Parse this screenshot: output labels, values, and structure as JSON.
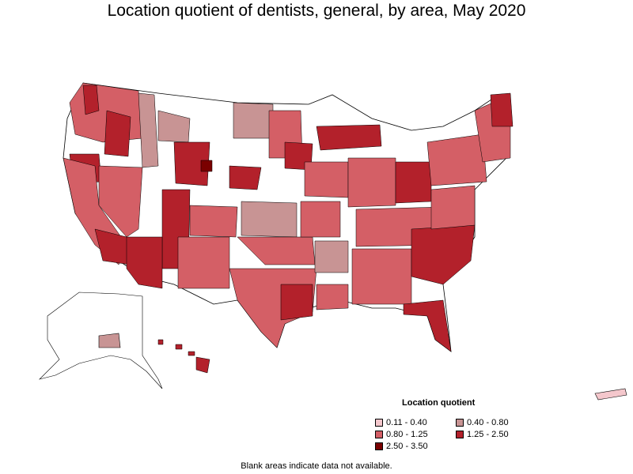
{
  "title": "Location quotient of dentists, general, by area, May 2020",
  "legend": {
    "title": "Location quotient",
    "items": [
      {
        "label": "0.11 - 0.40",
        "color": "#f4c7cc"
      },
      {
        "label": "0.40 - 0.80",
        "color": "#c89494"
      },
      {
        "label": "0.80 - 1.25",
        "color": "#d45f66"
      },
      {
        "label": "1.25 - 2.50",
        "color": "#b3212b"
      },
      {
        "label": "2.50 - 3.50",
        "color": "#7a0000"
      }
    ]
  },
  "footnote": "Blank areas indicate data not available.",
  "colors": {
    "blank": "#ffffff",
    "border": "#000000"
  }
}
